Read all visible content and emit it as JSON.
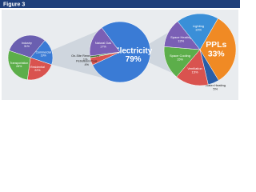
{
  "figure_label": "Figure 3",
  "chart_data": [
    {
      "type": "pie",
      "categories": [
        "Commercial",
        "Residential",
        "Transportation",
        "Industry"
      ],
      "values": [
        19,
        22,
        28,
        31
      ],
      "value_labels": [
        "19%",
        "22%",
        "28%",
        "31%"
      ],
      "colors": [
        "#3a7bd5",
        "#d9534f",
        "#5cae4a",
        "#6a5fb0"
      ]
    },
    {
      "type": "pie",
      "categories": [
        "Electricity",
        "Petroleum/Coal",
        "On-Site Renewables",
        "Natural Gas"
      ],
      "values": [
        79,
        4,
        1,
        17
      ],
      "value_labels": [
        "79%",
        "4%",
        "1%",
        "17%"
      ],
      "colors": [
        "#3a7bd5",
        "#d9534f",
        "#5cae4a",
        "#7a5fb5"
      ]
    },
    {
      "type": "pie",
      "categories": [
        "PPLs",
        "Water Heating",
        "Ventilation",
        "Space Cooling",
        "Space Heating",
        "Lighting"
      ],
      "values": [
        33,
        5,
        15,
        15,
        13,
        19
      ],
      "value_labels": [
        "33%",
        "5%",
        "15%",
        "15%",
        "13%",
        "19%"
      ],
      "colors": [
        "#f08a24",
        "#2a5ea8",
        "#d9534f",
        "#5cae4a",
        "#7a5fb5",
        "#3a8fd8"
      ]
    }
  ]
}
